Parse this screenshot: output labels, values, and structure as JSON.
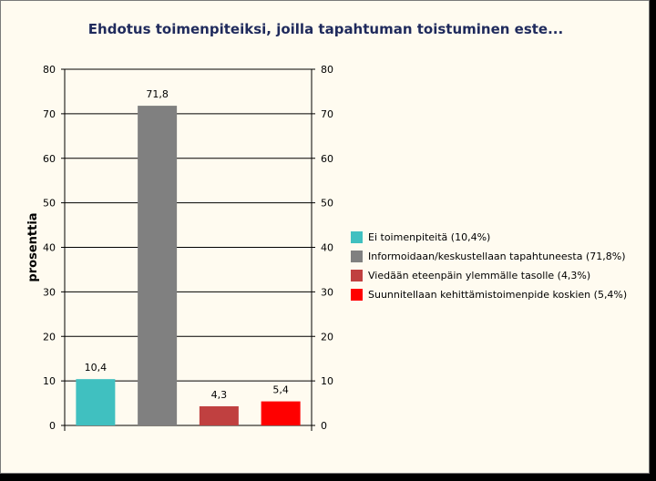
{
  "chart_data": {
    "type": "bar",
    "title": "Ehdotus toimenpiteiksi, joilla tapahtuman toistuminen este...",
    "ylabel": "prosenttia",
    "xlabel": "",
    "ylim": [
      0,
      80
    ],
    "yticks": [
      0,
      10,
      20,
      30,
      40,
      50,
      60,
      70,
      80
    ],
    "secondary_axis": true,
    "grid": true,
    "legend_position": "right",
    "categories": [
      "Ei toimenpiteitä (10,4%)",
      "Informoidaan/keskustellaan tapahtuneesta (71,8%)",
      "Viedään eteenpäin ylemmälle tasolle (4,3%)",
      "Suunnitellaan kehittämistoimenpide koskien (5,4%)"
    ],
    "values": [
      10.4,
      71.8,
      4.3,
      5.4
    ],
    "value_labels": [
      "10,4",
      "71,8",
      "4,3",
      "5,4"
    ],
    "colors": [
      "#40c0c0",
      "#808080",
      "#c04040",
      "#ff0000"
    ]
  }
}
